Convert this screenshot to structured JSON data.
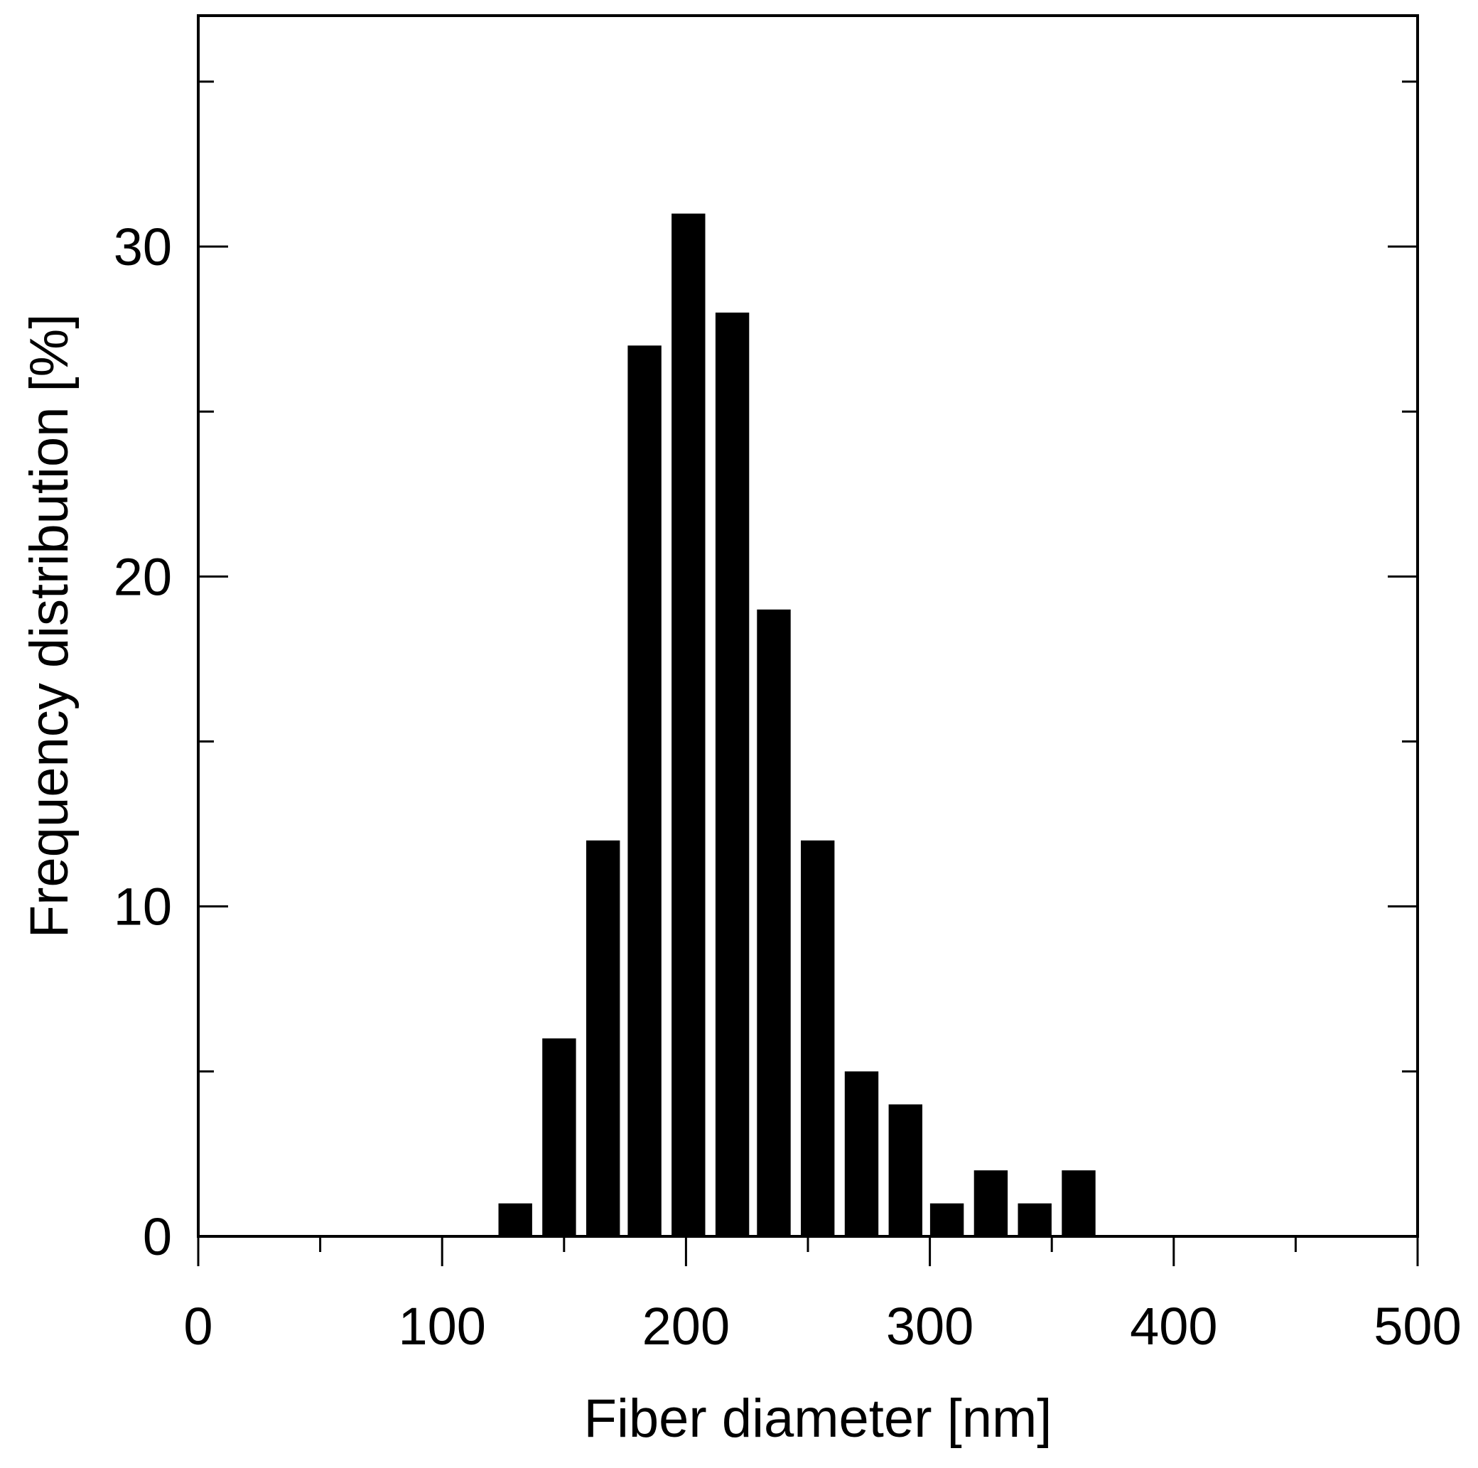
{
  "chart_data": {
    "type": "bar",
    "xlabel": "Fiber diameter [nm]",
    "ylabel": "Frequency distribution [%]",
    "xlim": [
      0,
      500
    ],
    "ylim": [
      0,
      37
    ],
    "x_ticks": [
      0,
      100,
      200,
      300,
      400,
      500
    ],
    "x_tick_labels": [
      "0",
      "100",
      "200",
      "300",
      "400",
      "500"
    ],
    "x_minor_ticks": [
      50,
      150,
      250,
      350,
      450
    ],
    "y_ticks": [
      0,
      10,
      20,
      30
    ],
    "y_tick_labels": [
      "0",
      "10",
      "20",
      "30"
    ],
    "y_minor_ticks": [
      5,
      15,
      25,
      35
    ],
    "bin_width": 17.7,
    "x": [
      130,
      148,
      166,
      183,
      201,
      219,
      236,
      254,
      272,
      290,
      307,
      325,
      343,
      361
    ],
    "values": [
      1,
      6,
      12,
      27,
      31,
      28,
      19,
      12,
      5,
      4,
      1,
      2,
      1,
      2
    ],
    "bar_color": "#000000",
    "grid": false,
    "legend": "none"
  }
}
